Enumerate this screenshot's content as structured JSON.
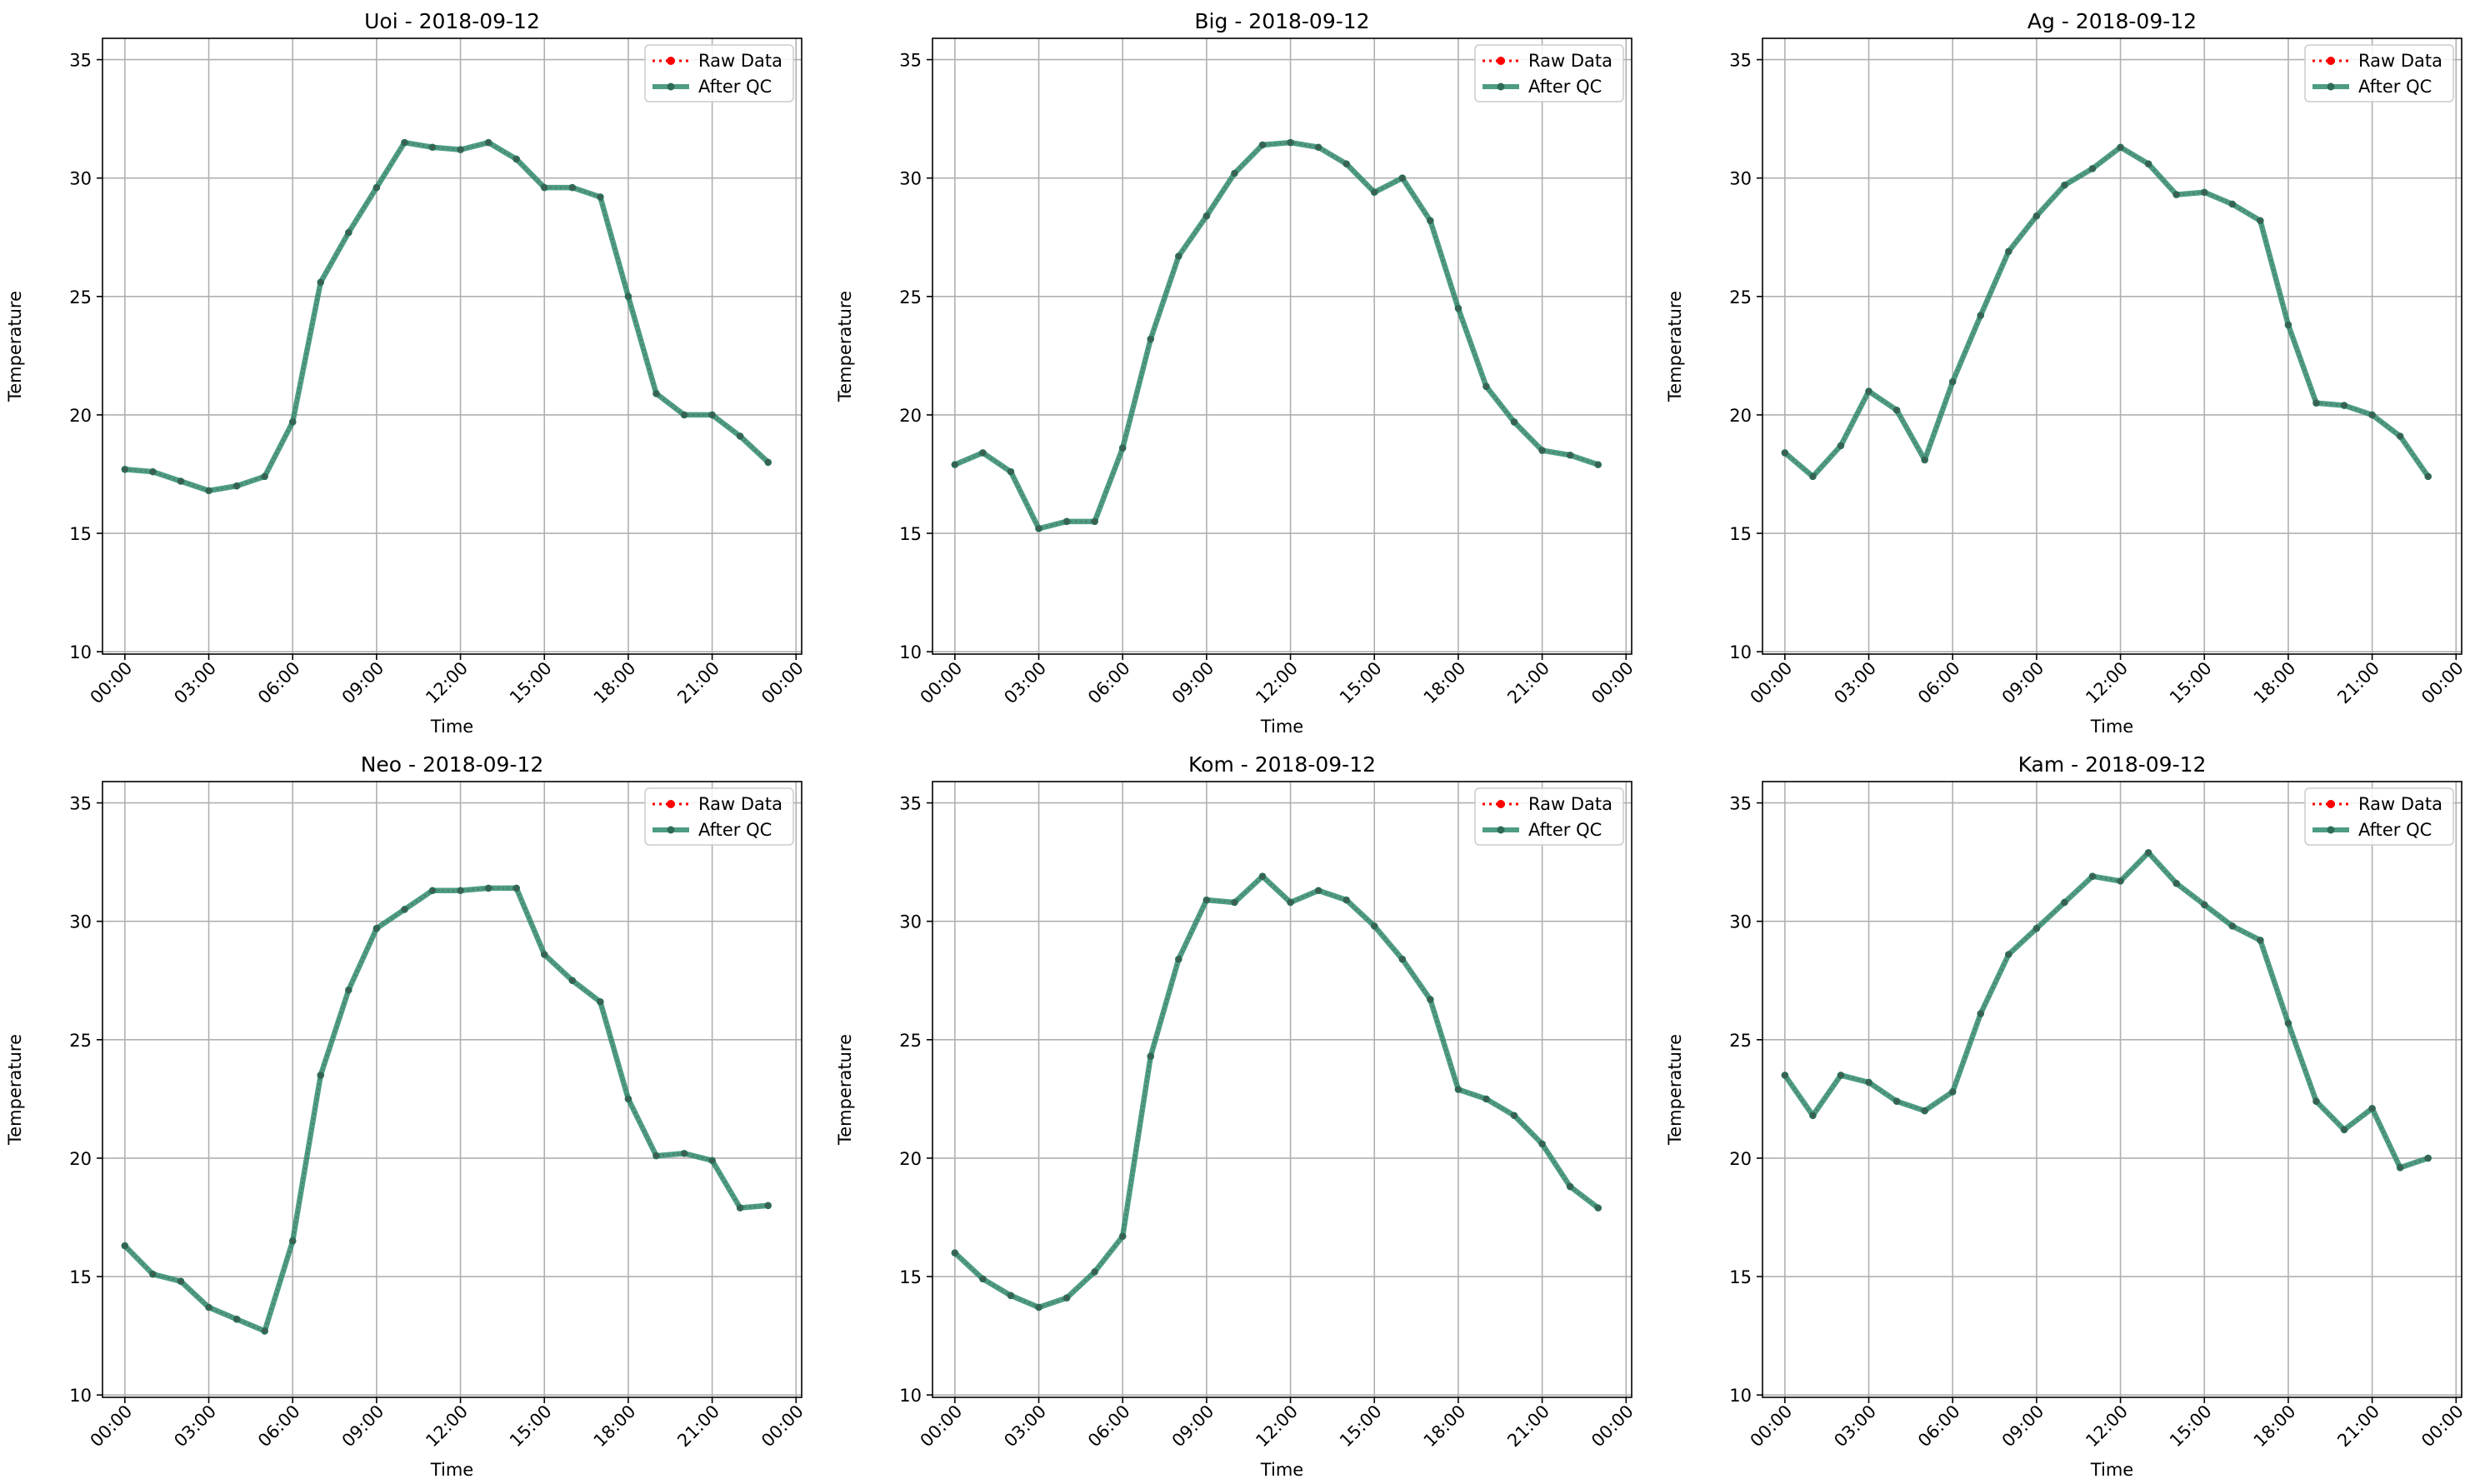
{
  "colors": {
    "raw": "#ff0000",
    "qc": "#2e8b6e",
    "qc_marker": "#2e6b57",
    "grid": "#b0b0b0",
    "axis": "#000000",
    "legend_border": "#cccccc"
  },
  "chart_data": [
    {
      "type": "line",
      "title": "Uoi - 2018-09-12",
      "xlabel": "Time",
      "ylabel": "Temperature",
      "ylim": [
        9.9,
        35.9
      ],
      "yticks": [
        10,
        15,
        20,
        25,
        30,
        35
      ],
      "xlim": [
        -0.8,
        24.2
      ],
      "xticks": [
        0,
        3,
        6,
        9,
        12,
        15,
        18,
        21,
        24
      ],
      "xtick_labels": [
        "00:00",
        "03:00",
        "06:00",
        "09:00",
        "12:00",
        "15:00",
        "18:00",
        "21:00",
        "00:00"
      ],
      "grid": true,
      "legend_position": "upper right",
      "x": [
        0,
        1,
        2,
        3,
        4,
        5,
        6,
        7,
        8,
        9,
        10,
        11,
        12,
        13,
        14,
        15,
        16,
        17,
        18,
        19,
        20,
        21,
        22,
        23
      ],
      "series": [
        {
          "name": "Raw Data",
          "style": "dotted",
          "values": [
            17.7,
            17.6,
            17.2,
            16.8,
            17.0,
            17.4,
            19.7,
            25.6,
            27.7,
            29.6,
            31.5,
            31.3,
            31.2,
            31.5,
            30.8,
            29.6,
            29.6,
            29.2,
            25.0,
            20.9,
            20.0,
            20.0,
            19.1,
            18.0
          ]
        },
        {
          "name": "After QC",
          "style": "solid",
          "values": [
            17.7,
            17.6,
            17.2,
            16.8,
            17.0,
            17.4,
            19.7,
            25.6,
            27.7,
            29.6,
            31.5,
            31.3,
            31.2,
            31.5,
            30.8,
            29.6,
            29.6,
            29.2,
            25.0,
            20.9,
            20.0,
            20.0,
            19.1,
            18.0
          ]
        }
      ]
    },
    {
      "type": "line",
      "title": "Big - 2018-09-12",
      "xlabel": "Time",
      "ylabel": "Temperature",
      "ylim": [
        9.9,
        35.9
      ],
      "yticks": [
        10,
        15,
        20,
        25,
        30,
        35
      ],
      "xlim": [
        -0.8,
        24.2
      ],
      "xticks": [
        0,
        3,
        6,
        9,
        12,
        15,
        18,
        21,
        24
      ],
      "xtick_labels": [
        "00:00",
        "03:00",
        "06:00",
        "09:00",
        "12:00",
        "15:00",
        "18:00",
        "21:00",
        "00:00"
      ],
      "grid": true,
      "legend_position": "upper right",
      "x": [
        0,
        1,
        2,
        3,
        4,
        5,
        6,
        7,
        8,
        9,
        10,
        11,
        12,
        13,
        14,
        15,
        16,
        17,
        18,
        19,
        20,
        21,
        22,
        23
      ],
      "series": [
        {
          "name": "Raw Data",
          "style": "dotted",
          "values": [
            17.9,
            18.4,
            17.6,
            15.2,
            15.5,
            15.5,
            18.6,
            23.2,
            26.7,
            28.4,
            30.2,
            31.4,
            31.5,
            31.3,
            30.6,
            29.4,
            30.0,
            28.2,
            24.5,
            21.2,
            19.7,
            18.5,
            18.3,
            17.9
          ]
        },
        {
          "name": "After QC",
          "style": "solid",
          "values": [
            17.9,
            18.4,
            17.6,
            15.2,
            15.5,
            15.5,
            18.6,
            23.2,
            26.7,
            28.4,
            30.2,
            31.4,
            31.5,
            31.3,
            30.6,
            29.4,
            30.0,
            28.2,
            24.5,
            21.2,
            19.7,
            18.5,
            18.3,
            17.9
          ]
        }
      ]
    },
    {
      "type": "line",
      "title": "Ag - 2018-09-12",
      "xlabel": "Time",
      "ylabel": "Temperature",
      "ylim": [
        9.9,
        35.9
      ],
      "yticks": [
        10,
        15,
        20,
        25,
        30,
        35
      ],
      "xlim": [
        -0.8,
        24.2
      ],
      "xticks": [
        0,
        3,
        6,
        9,
        12,
        15,
        18,
        21,
        24
      ],
      "xtick_labels": [
        "00:00",
        "03:00",
        "06:00",
        "09:00",
        "12:00",
        "15:00",
        "18:00",
        "21:00",
        "00:00"
      ],
      "grid": true,
      "legend_position": "upper right",
      "x": [
        0,
        1,
        2,
        3,
        4,
        5,
        6,
        7,
        8,
        9,
        10,
        11,
        12,
        13,
        14,
        15,
        16,
        17,
        18,
        19,
        20,
        21,
        22,
        23
      ],
      "series": [
        {
          "name": "Raw Data",
          "style": "dotted",
          "values": [
            18.4,
            17.4,
            18.7,
            21.0,
            20.2,
            18.1,
            21.4,
            24.2,
            26.9,
            28.4,
            29.7,
            30.4,
            31.3,
            30.6,
            29.3,
            29.4,
            28.9,
            28.2,
            23.8,
            20.5,
            20.4,
            20.0,
            19.1,
            17.4
          ]
        },
        {
          "name": "After QC",
          "style": "solid",
          "values": [
            18.4,
            17.4,
            18.7,
            21.0,
            20.2,
            18.1,
            21.4,
            24.2,
            26.9,
            28.4,
            29.7,
            30.4,
            31.3,
            30.6,
            29.3,
            29.4,
            28.9,
            28.2,
            23.8,
            20.5,
            20.4,
            20.0,
            19.1,
            17.4
          ]
        }
      ]
    },
    {
      "type": "line",
      "title": "Neo - 2018-09-12",
      "xlabel": "Time",
      "ylabel": "Temperature",
      "ylim": [
        9.9,
        35.9
      ],
      "yticks": [
        10,
        15,
        20,
        25,
        30,
        35
      ],
      "xlim": [
        -0.8,
        24.2
      ],
      "xticks": [
        0,
        3,
        6,
        9,
        12,
        15,
        18,
        21,
        24
      ],
      "xtick_labels": [
        "00:00",
        "03:00",
        "06:00",
        "09:00",
        "12:00",
        "15:00",
        "18:00",
        "21:00",
        "00:00"
      ],
      "grid": true,
      "legend_position": "upper right",
      "x": [
        0,
        1,
        2,
        3,
        4,
        5,
        6,
        7,
        8,
        9,
        10,
        11,
        12,
        13,
        14,
        15,
        16,
        17,
        18,
        19,
        20,
        21,
        22,
        23
      ],
      "series": [
        {
          "name": "Raw Data",
          "style": "dotted",
          "values": [
            16.3,
            15.1,
            14.8,
            13.7,
            13.2,
            12.7,
            16.5,
            23.5,
            27.1,
            29.7,
            30.5,
            31.3,
            31.3,
            31.4,
            31.4,
            28.6,
            27.5,
            26.6,
            22.5,
            20.1,
            20.2,
            19.9,
            17.9,
            18.0
          ]
        },
        {
          "name": "After QC",
          "style": "solid",
          "values": [
            16.3,
            15.1,
            14.8,
            13.7,
            13.2,
            12.7,
            16.5,
            23.5,
            27.1,
            29.7,
            30.5,
            31.3,
            31.3,
            31.4,
            31.4,
            28.6,
            27.5,
            26.6,
            22.5,
            20.1,
            20.2,
            19.9,
            17.9,
            18.0
          ]
        }
      ]
    },
    {
      "type": "line",
      "title": "Kom - 2018-09-12",
      "xlabel": "Time",
      "ylabel": "Temperature",
      "ylim": [
        9.9,
        35.9
      ],
      "yticks": [
        10,
        15,
        20,
        25,
        30,
        35
      ],
      "xlim": [
        -0.8,
        24.2
      ],
      "xticks": [
        0,
        3,
        6,
        9,
        12,
        15,
        18,
        21,
        24
      ],
      "xtick_labels": [
        "00:00",
        "03:00",
        "06:00",
        "09:00",
        "12:00",
        "15:00",
        "18:00",
        "21:00",
        "00:00"
      ],
      "grid": true,
      "legend_position": "upper right",
      "x": [
        0,
        1,
        2,
        3,
        4,
        5,
        6,
        7,
        8,
        9,
        10,
        11,
        12,
        13,
        14,
        15,
        16,
        17,
        18,
        19,
        20,
        21,
        22,
        23
      ],
      "series": [
        {
          "name": "Raw Data",
          "style": "dotted",
          "values": [
            16.0,
            14.9,
            14.2,
            13.7,
            14.1,
            15.2,
            16.7,
            24.3,
            28.4,
            30.9,
            30.8,
            31.9,
            30.8,
            31.3,
            30.9,
            29.8,
            28.4,
            26.7,
            22.9,
            22.5,
            21.8,
            20.6,
            18.8,
            17.9
          ]
        },
        {
          "name": "After QC",
          "style": "solid",
          "values": [
            16.0,
            14.9,
            14.2,
            13.7,
            14.1,
            15.2,
            16.7,
            24.3,
            28.4,
            30.9,
            30.8,
            31.9,
            30.8,
            31.3,
            30.9,
            29.8,
            28.4,
            26.7,
            22.9,
            22.5,
            21.8,
            20.6,
            18.8,
            17.9
          ]
        }
      ]
    },
    {
      "type": "line",
      "title": "Kam - 2018-09-12",
      "xlabel": "Time",
      "ylabel": "Temperature",
      "ylim": [
        9.9,
        35.9
      ],
      "yticks": [
        10,
        15,
        20,
        25,
        30,
        35
      ],
      "xlim": [
        -0.8,
        24.2
      ],
      "xticks": [
        0,
        3,
        6,
        9,
        12,
        15,
        18,
        21,
        24
      ],
      "xtick_labels": [
        "00:00",
        "03:00",
        "06:00",
        "09:00",
        "12:00",
        "15:00",
        "18:00",
        "21:00",
        "00:00"
      ],
      "grid": true,
      "legend_position": "upper right",
      "x": [
        0,
        1,
        2,
        3,
        4,
        5,
        6,
        7,
        8,
        9,
        10,
        11,
        12,
        13,
        14,
        15,
        16,
        17,
        18,
        19,
        20,
        21,
        22,
        23
      ],
      "series": [
        {
          "name": "Raw Data",
          "style": "dotted",
          "values": [
            23.5,
            21.8,
            23.5,
            23.2,
            22.4,
            22.0,
            22.8,
            26.1,
            28.6,
            29.7,
            30.8,
            31.9,
            31.7,
            32.9,
            31.6,
            30.7,
            29.8,
            29.2,
            25.7,
            22.4,
            21.2,
            22.1,
            19.6,
            20.0
          ]
        },
        {
          "name": "After QC",
          "style": "solid",
          "values": [
            23.5,
            21.8,
            23.5,
            23.2,
            22.4,
            22.0,
            22.8,
            26.1,
            28.6,
            29.7,
            30.8,
            31.9,
            31.7,
            32.9,
            31.6,
            30.7,
            29.8,
            29.2,
            25.7,
            22.4,
            21.2,
            22.1,
            19.6,
            20.0
          ]
        }
      ]
    }
  ]
}
